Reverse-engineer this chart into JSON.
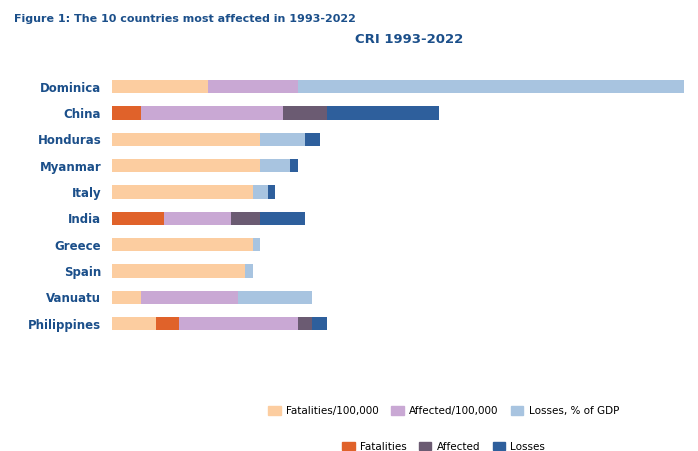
{
  "title_figure": "Figure 1: The 10 countries most affected in 1993-2022",
  "title_chart": "CRI 1993-2022",
  "countries": [
    "Dominica",
    "China",
    "Honduras",
    "Myanmar",
    "Italy",
    "India",
    "Greece",
    "Spain",
    "Vanuatu",
    "Philippines"
  ],
  "segments": {
    "fatalities_per100k": [
      13,
      0,
      20,
      20,
      19,
      0,
      19,
      18,
      4,
      6
    ],
    "fatalities": [
      0,
      4,
      0,
      0,
      0,
      7,
      0,
      0,
      0,
      3
    ],
    "affected_per100k": [
      12,
      19,
      0,
      0,
      0,
      9,
      0,
      0,
      13,
      16
    ],
    "affected": [
      0,
      6,
      0,
      0,
      0,
      4,
      0,
      0,
      0,
      2
    ],
    "losses_pct_gdp": [
      52,
      0,
      6,
      4,
      2,
      0,
      1,
      1,
      10,
      0
    ],
    "losses": [
      0,
      15,
      2,
      1,
      1,
      6,
      0,
      0,
      0,
      2
    ]
  },
  "colors": {
    "fatalities_per100k": "#FCCDA0",
    "fatalities": "#E0622A",
    "affected_per100k": "#C9A8D4",
    "affected": "#6B5B72",
    "losses_pct_gdp": "#A8C4E0",
    "losses": "#2E5F9C"
  },
  "legend_labels": {
    "fatalities_per100k": "Fatalities/100,000",
    "affected_per100k": "Affected/100,000",
    "losses_pct_gdp": "Losses, % of GDP",
    "fatalities": "Fatalities",
    "affected": "Affected",
    "losses": "Losses"
  },
  "background_color": "#FFFFFF",
  "title_color": "#1B4F8A",
  "label_color": "#1B4F8A",
  "figure_title_color": "#1B4F8A"
}
